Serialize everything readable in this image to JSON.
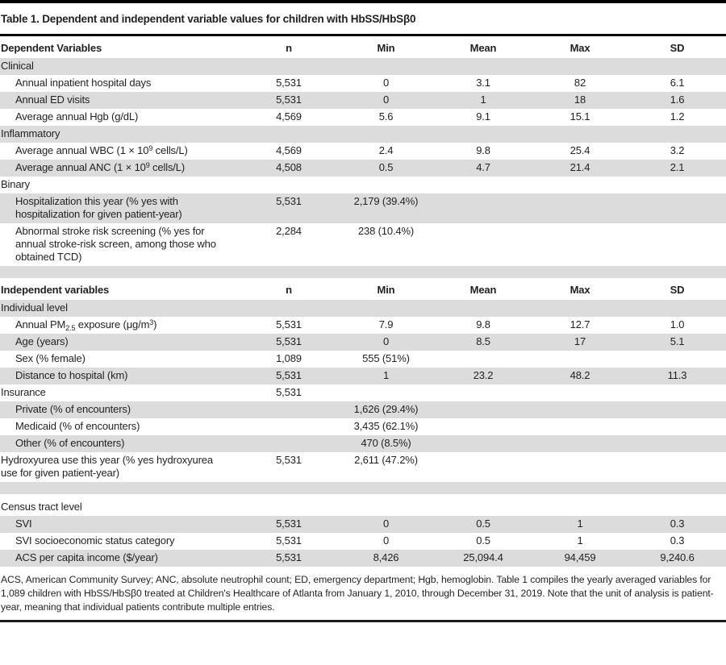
{
  "title": "Table 1. Dependent and independent variable values for children with HbSS/HbSβ0",
  "columns": [
    "n",
    "Min",
    "Mean",
    "Max",
    "SD"
  ],
  "sections": [
    {
      "header": "Dependent Variables",
      "rows": [
        {
          "label": "Clinical",
          "indent": false,
          "shade": true,
          "cells": [
            "",
            "",
            "",
            "",
            ""
          ]
        },
        {
          "label": "Annual inpatient hospital days",
          "indent": true,
          "shade": false,
          "cells": [
            "5,531",
            "0",
            "3.1",
            "82",
            "6.1"
          ]
        },
        {
          "label": "Annual ED visits",
          "indent": true,
          "shade": true,
          "cells": [
            "5,531",
            "0",
            "1",
            "18",
            "1.6"
          ]
        },
        {
          "label": "Average annual Hgb (g/dL)",
          "indent": true,
          "shade": false,
          "cells": [
            "4,569",
            "5.6",
            "9.1",
            "15.1",
            "1.2"
          ]
        },
        {
          "label": "Inflammatory",
          "indent": false,
          "shade": true,
          "cells": [
            "",
            "",
            "",
            "",
            ""
          ]
        },
        {
          "label": "Average annual WBC (1 × 10^9^ cells/L)",
          "indent": true,
          "shade": false,
          "cells": [
            "4,569",
            "2.4",
            "9.8",
            "25.4",
            "3.2"
          ]
        },
        {
          "label": "Average annual ANC (1 × 10^9^ cells/L)",
          "indent": true,
          "shade": true,
          "cells": [
            "4,508",
            "0.5",
            "4.7",
            "21.4",
            "2.1"
          ]
        },
        {
          "label": "Binary",
          "indent": false,
          "shade": false,
          "cells": [
            "",
            "",
            "",
            "",
            ""
          ]
        },
        {
          "label": "Hospitalization this year (% yes with hospitalization for given patient-year)",
          "indent": true,
          "shade": true,
          "cells": [
            "5,531",
            "2,179 (39.4%)",
            "",
            "",
            ""
          ]
        },
        {
          "label": "Abnormal stroke risk screening (% yes for annual stroke-risk screen, among those who obtained TCD)",
          "indent": true,
          "shade": false,
          "cells": [
            "2,284",
            "238 (10.4%)",
            "",
            "",
            ""
          ]
        },
        {
          "spacer": true,
          "shade": true
        }
      ]
    },
    {
      "header": "Independent variables",
      "rows": [
        {
          "label": "Individual level",
          "indent": false,
          "shade": true,
          "cells": [
            "",
            "",
            "",
            "",
            ""
          ]
        },
        {
          "label": "Annual PM~2.5~ exposure (μg/m^3^)",
          "indent": true,
          "shade": false,
          "cells": [
            "5,531",
            "7.9",
            "9.8",
            "12.7",
            "1.0"
          ]
        },
        {
          "label": "Age (years)",
          "indent": true,
          "shade": true,
          "cells": [
            "5,531",
            "0",
            "8.5",
            "17",
            "5.1"
          ]
        },
        {
          "label": "Sex (% female)",
          "indent": true,
          "shade": false,
          "cells": [
            "1,089",
            "555 (51%)",
            "",
            "",
            ""
          ]
        },
        {
          "label": "Distance to hospital (km)",
          "indent": true,
          "shade": true,
          "cells": [
            "5,531",
            "1",
            "23.2",
            "48.2",
            "11.3"
          ]
        },
        {
          "label": "Insurance",
          "indent": false,
          "shade": false,
          "cells": [
            "5,531",
            "",
            "",
            "",
            ""
          ]
        },
        {
          "label": "Private (% of encounters)",
          "indent": true,
          "shade": true,
          "cells": [
            "",
            "1,626 (29.4%)",
            "",
            "",
            ""
          ]
        },
        {
          "label": "Medicaid (% of encounters)",
          "indent": true,
          "shade": false,
          "cells": [
            "",
            "3,435 (62.1%)",
            "",
            "",
            ""
          ]
        },
        {
          "label": "Other (% of encounters)",
          "indent": true,
          "shade": true,
          "cells": [
            "",
            "470 (8.5%)",
            "",
            "",
            ""
          ]
        },
        {
          "label": "Hydroxyurea use this year (% yes hydroxyurea use for given patient-year)",
          "indent": false,
          "shade": false,
          "cells": [
            "5,531",
            "2,611 (47.2%)",
            "",
            "",
            ""
          ]
        },
        {
          "spacer": true,
          "shade": true
        },
        {
          "label": "Census tract level",
          "indent": false,
          "shade": false,
          "tall": true,
          "cells": [
            "",
            "",
            "",
            "",
            ""
          ]
        },
        {
          "label": "SVI",
          "indent": true,
          "shade": true,
          "cells": [
            "5,531",
            "0",
            "0.5",
            "1",
            "0.3"
          ]
        },
        {
          "label": "SVI socioeconomic status category",
          "indent": true,
          "shade": false,
          "cells": [
            "5,531",
            "0",
            "0.5",
            "1",
            "0.3"
          ]
        },
        {
          "label": "ACS per capita income ($/year)",
          "indent": true,
          "shade": true,
          "cells": [
            "5,531",
            "8,426",
            "25,094.4",
            "94,459",
            "9,240.6"
          ]
        }
      ]
    }
  ],
  "footnote": "ACS, American Community Survey; ANC, absolute neutrophil count; ED, emergency department; Hgb, hemoglobin. Table 1 compiles the yearly averaged variables for 1,089 children with HbSS/HbSβ0 treated at Children's Healthcare of Atlanta from January 1, 2010, through December 31, 2019. Note that the unit of analysis is patient-year, meaning that individual patients contribute multiple entries.",
  "colors": {
    "shade": "#dcdcdc",
    "text": "#231f20",
    "rule": "#000000"
  }
}
